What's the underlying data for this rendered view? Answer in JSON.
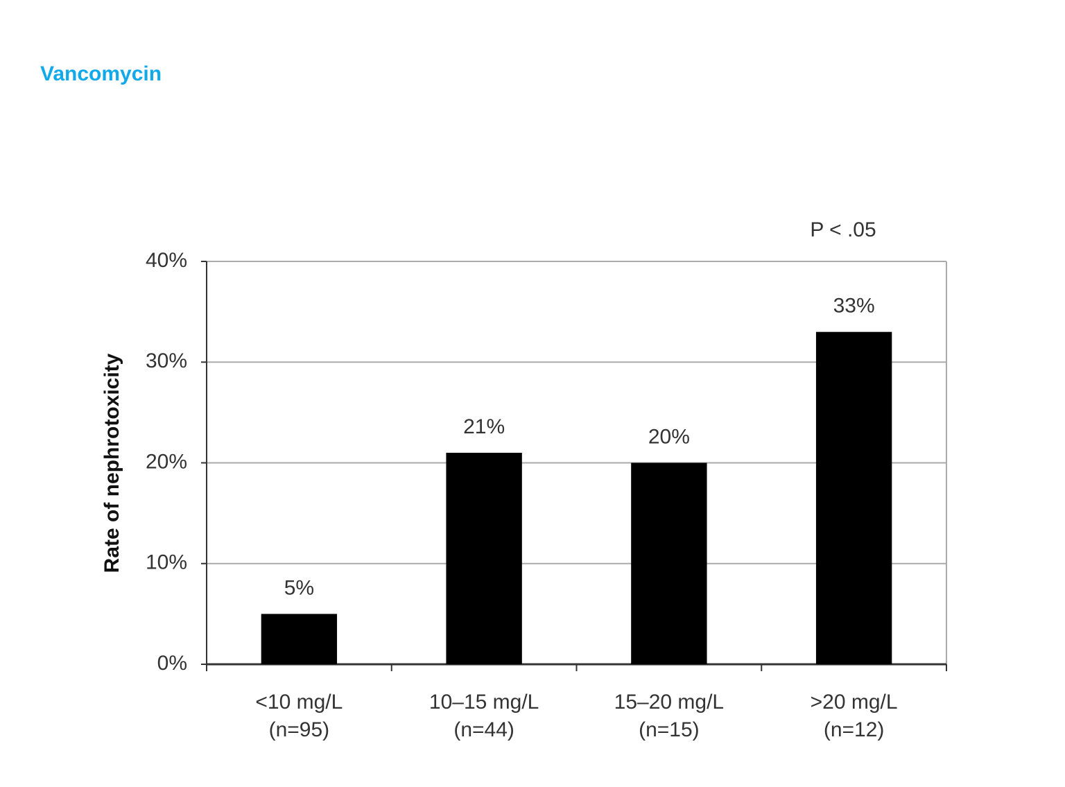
{
  "chart_data": {
    "type": "bar",
    "title": "Vancomycin",
    "y_label": "Rate of nephrotoxicity",
    "annotation": "P < .05",
    "categories": [
      "<10 mg/L",
      "10–15 mg/L",
      "15–20 mg/L",
      ">20 mg/L"
    ],
    "sample_sizes": [
      "(n=95)",
      "(n=44)",
      "(n=15)",
      "(n=12)"
    ],
    "values": [
      5,
      21,
      20,
      33
    ],
    "value_labels": [
      "5%",
      "21%",
      "20%",
      "33%"
    ],
    "color": "#000000",
    "ylim": [
      0,
      40
    ],
    "yticks": [
      {
        "value": 0,
        "label": "0%"
      },
      {
        "value": 10,
        "label": "10%"
      },
      {
        "value": 20,
        "label": "20%"
      },
      {
        "value": 30,
        "label": "30%"
      },
      {
        "value": 40,
        "label": "40%"
      }
    ],
    "grid": true
  }
}
